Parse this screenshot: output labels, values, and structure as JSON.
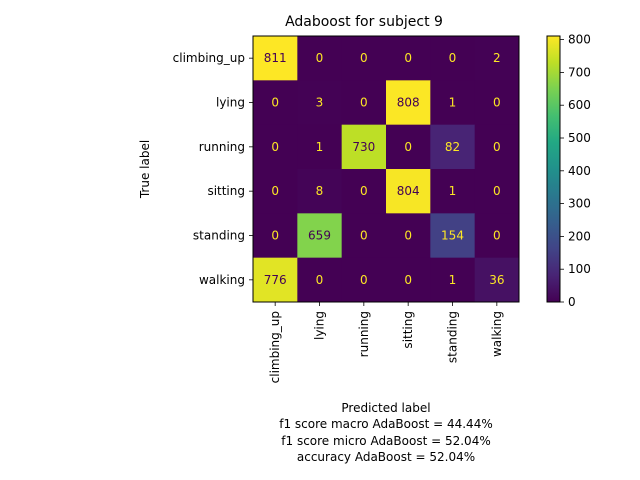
{
  "chart_data": {
    "type": "heatmap",
    "title": "Adaboost for subject 9",
    "xlabel": "Predicted label",
    "ylabel": "True label",
    "xlabel_extra": [
      "f1 score macro AdaBoost = 44.44%",
      "f1 score micro AdaBoost = 52.04%",
      "accuracy AdaBoost = 52.04%"
    ],
    "row_labels": [
      "climbing_up",
      "lying",
      "running",
      "sitting",
      "standing",
      "walking"
    ],
    "col_labels": [
      "climbing_up",
      "lying",
      "running",
      "sitting",
      "standing",
      "walking"
    ],
    "values": [
      [
        811,
        0,
        0,
        0,
        0,
        2
      ],
      [
        0,
        3,
        0,
        808,
        1,
        0
      ],
      [
        0,
        1,
        730,
        0,
        82,
        0
      ],
      [
        0,
        8,
        0,
        804,
        1,
        0
      ],
      [
        0,
        659,
        0,
        0,
        154,
        0
      ],
      [
        776,
        0,
        0,
        0,
        1,
        36
      ]
    ],
    "colormap": "viridis",
    "vmin": 0,
    "vmax": 811,
    "colorbar_ticks": [
      0,
      100,
      200,
      300,
      400,
      500,
      600,
      700,
      800
    ],
    "colorbar_tick_labels": [
      "0",
      "100",
      "200",
      "300",
      "400",
      "500",
      "600",
      "700",
      "800"
    ],
    "grid": false
  }
}
